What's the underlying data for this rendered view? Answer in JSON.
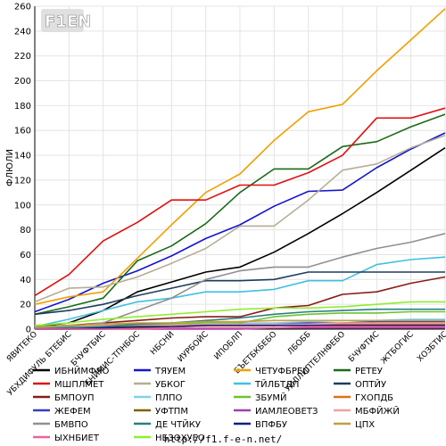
{
  "footer": "http://f1.f-e-n.net/",
  "logo": {
    "text": "F1EN"
  },
  "chart_data": {
    "type": "line",
    "ylabel": "ФЛЮЛИ",
    "xlabel": "",
    "ylim": [
      0,
      260
    ],
    "ytick_step": 20,
    "grid": true,
    "legend_position": "bottom",
    "categories": [
      "ЯВИТЕКО",
      "УБХДИФУЛЬ БТЕБИС",
      "БЧУФТБИС",
      "БНИМИС-ТПНБОС",
      "НБСНИ",
      "ИУРБОЙС",
      "ИПОБЛП",
      "БЪЕТБКБЕБО",
      "ЛБОББ",
      "УИЛЛИПТЕЛНФЕБО",
      "БЧУФТИС",
      "ЖТБОГИС",
      "ХОЗБТИС"
    ],
    "series": [
      {
        "name": "ИБНЙМФЯО",
        "color": "#000000",
        "values": [
          2,
          5,
          15,
          30,
          38,
          46,
          50,
          62,
          77,
          93,
          110,
          128,
          146
        ]
      },
      {
        "name": "ТЯУЕМ",
        "color": "#1515cc",
        "values": [
          14,
          24,
          37,
          47,
          59,
          73,
          84,
          99,
          111,
          112,
          130,
          145,
          158
        ]
      },
      {
        "name": "ЧЕТУФБРЕО",
        "color": "#f0a000",
        "values": [
          20,
          26,
          30,
          57,
          84,
          110,
          125,
          152,
          175,
          181,
          208,
          233,
          258
        ]
      },
      {
        "name": "РЕТЕУ",
        "color": "#1a6a1a",
        "values": [
          12,
          18,
          25,
          55,
          67,
          85,
          110,
          129,
          129,
          147,
          151,
          163,
          173
        ]
      },
      {
        "name": "МШПЛМЕТ",
        "color": "#e01010",
        "values": [
          27,
          44,
          71,
          86,
          104,
          104,
          116,
          116,
          126,
          140,
          170,
          170,
          178
        ]
      },
      {
        "name": "УБКОГ",
        "color": "#b5ae95",
        "values": [
          22,
          33,
          34,
          42,
          53,
          65,
          83,
          83,
          104,
          128,
          133,
          146,
          156
        ]
      },
      {
        "name": "ТЙЛБТДП",
        "color": "#40c0e0",
        "values": [
          2,
          8,
          15,
          22,
          25,
          30,
          30,
          32,
          39,
          39,
          52,
          56,
          58
        ]
      },
      {
        "name": "ОПТЙУ",
        "color": "#1d3d5d",
        "values": [
          12,
          15,
          20,
          27,
          33,
          39,
          39,
          40,
          46,
          46,
          46,
          46,
          46
        ]
      },
      {
        "name": "БМПОУП",
        "color": "#8b1a1a",
        "values": [
          2,
          3,
          5,
          7,
          9,
          10,
          10,
          17,
          19,
          28,
          30,
          37,
          42
        ]
      },
      {
        "name": "ПЛПО",
        "color": "#80d0f0",
        "values": [
          1,
          2,
          3,
          3,
          4,
          4,
          5,
          5,
          6,
          7,
          7,
          8,
          8
        ]
      },
      {
        "name": "ЗБУМЙ",
        "color": "#6ac430",
        "values": [
          1,
          2,
          3,
          4,
          4,
          5,
          5,
          10,
          12,
          13,
          13,
          14,
          14
        ]
      },
      {
        "name": "ГХОПДБ",
        "color": "#e07010",
        "values": [
          1,
          1,
          2,
          2,
          3,
          3,
          3,
          3,
          4,
          4,
          4,
          4,
          4
        ]
      },
      {
        "name": "ЖЕФЕМ",
        "color": "#3040c0",
        "values": [
          0,
          1,
          1,
          2,
          3,
          3,
          4,
          4,
          5,
          5,
          6,
          6,
          6
        ]
      },
      {
        "name": "УФТПМ",
        "color": "#806000",
        "values": [
          0,
          0,
          0,
          1,
          1,
          1,
          1,
          1,
          1,
          1,
          1,
          1,
          1
        ]
      },
      {
        "name": "ИАМЛЕОВЕТЗ",
        "color": "#a040b0",
        "values": [
          0,
          0,
          0,
          0,
          0,
          0,
          0,
          1,
          1,
          1,
          1,
          1,
          1
        ]
      },
      {
        "name": "МБФЙЖЙ",
        "color": "#f0a0a0",
        "values": [
          1,
          2,
          3,
          3,
          3,
          4,
          4,
          4,
          4,
          5,
          5,
          5,
          5
        ]
      },
      {
        "name": "БМВПО",
        "color": "#909090",
        "values": [
          1,
          2,
          5,
          15,
          25,
          40,
          47,
          50,
          50,
          58,
          65,
          70,
          77
        ]
      },
      {
        "name": "ДЕ ЧТЙКУ",
        "color": "#2a8080",
        "values": [
          0,
          1,
          2,
          4,
          5,
          7,
          9,
          12,
          14,
          15,
          16,
          16,
          16
        ]
      },
      {
        "name": "ВПФБУ",
        "color": "#102080",
        "values": [
          0,
          0,
          1,
          2,
          2,
          3,
          3,
          3,
          3,
          3,
          3,
          3,
          3
        ]
      },
      {
        "name": "ЦПХ",
        "color": "#c0a040",
        "values": [
          2,
          3,
          4,
          5,
          5,
          6,
          6,
          7,
          7,
          7,
          7,
          7,
          7
        ]
      },
      {
        "name": "ЫХНБИЕТ",
        "color": "#f060a0",
        "values": [
          0,
          0,
          0,
          0,
          1,
          1,
          1,
          1,
          2,
          2,
          2,
          2,
          2
        ]
      },
      {
        "name": "НБЗОХУЕО",
        "color": "#90ee30",
        "values": [
          3,
          5,
          8,
          10,
          12,
          14,
          16,
          17,
          17,
          18,
          20,
          22,
          22
        ]
      }
    ]
  }
}
